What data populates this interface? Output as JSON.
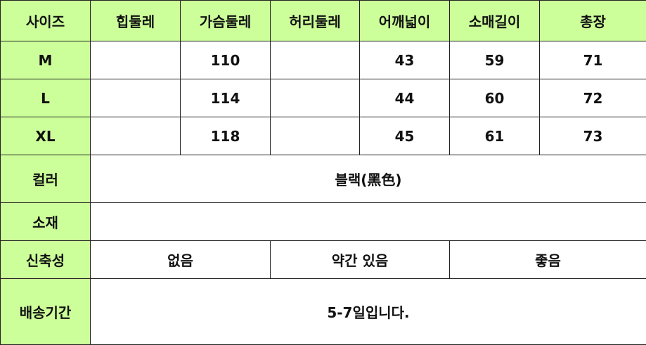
{
  "header": [
    "사이즈",
    "힙둘레",
    "가슴둘레",
    "허리둘레",
    "어깨넓이",
    "소매길이",
    "총장"
  ],
  "rows": [
    {
      "size": "M",
      "values": [
        "",
        "110",
        "",
        "43",
        "59",
        "71"
      ]
    },
    {
      "size": "L",
      "values": [
        "",
        "114",
        "",
        "44",
        "60",
        "72"
      ]
    },
    {
      "size": "XL",
      "values": [
        "",
        "118",
        "",
        "45",
        "61",
        "73"
      ]
    }
  ],
  "color": {
    "label": "컬러",
    "value": "블랙(黑色)"
  },
  "material": {
    "label": "소재",
    "value": ""
  },
  "stretch": {
    "label": "신축성",
    "options": [
      "없음",
      "약간 있음",
      "좋음"
    ]
  },
  "shipping": {
    "label": "배송기간",
    "value": "5-7일입니다."
  },
  "colors": {
    "header_bg": "#ccff99",
    "border": "#222222"
  }
}
